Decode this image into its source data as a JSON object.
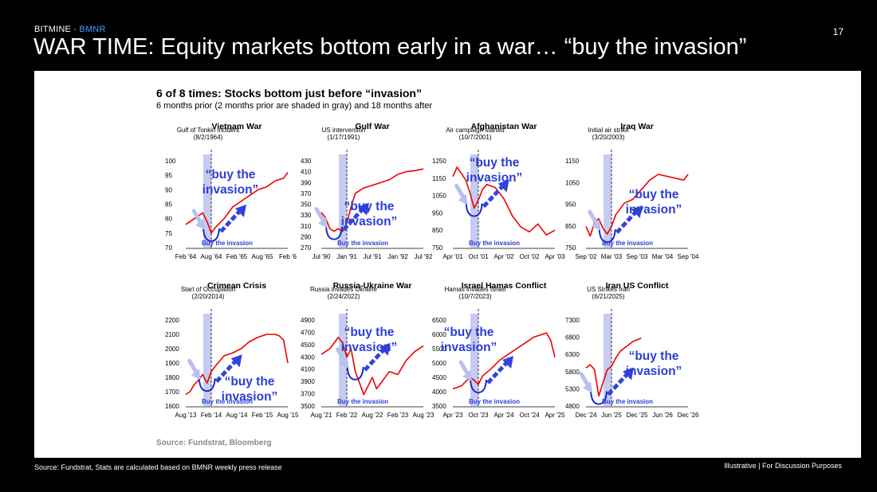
{
  "header": {
    "brand": "BITMINE",
    "brand_sep": " · ",
    "ticker": "BMNR",
    "page_number": "17",
    "title": "WAR TIME: Equity markets bottom early in a war… “buy the invasion”"
  },
  "panel": {
    "title": "6 of 8 times: Stocks bottom just before “invasion”",
    "subtitle": "6 months prior (2 months prior are shaded in gray) and 18 months after",
    "source": "Source: Fundstrat, Bloomberg"
  },
  "footer": {
    "source": "Source: Fundstrat, Stats are calculated based on BMNR weekly press release",
    "note": "Illustrative  |  For Discussion Purposes"
  },
  "colors": {
    "line": "#ee0000",
    "shade": "#c5cbf2",
    "arrow": "#3344dd",
    "arrow_light": "#b8c0ee",
    "text_blue": "#2b3ed4"
  },
  "chart_data": [
    {
      "type": "line",
      "title": "Vietnam War",
      "annotation": "Gulf of Tonkin incident (8/2/1964)",
      "yticks": [
        "100",
        "95",
        "90",
        "85",
        "80",
        "75",
        "70"
      ],
      "ylim": [
        70,
        100
      ],
      "xticks": [
        "Feb '64",
        "Aug '64",
        "Feb '65",
        "Aug '65",
        "Feb '6"
      ],
      "event_x": 6,
      "series": [
        {
          "name": "Index",
          "x": [
            0,
            2,
            4,
            5,
            6,
            7,
            9,
            11,
            13,
            15,
            17,
            19,
            21,
            23,
            24
          ],
          "values": [
            78,
            80,
            82,
            79,
            75,
            77,
            80,
            84,
            86,
            88,
            90,
            91,
            93,
            94,
            96
          ]
        }
      ],
      "callout": "“buy the invasion”",
      "label": "Buy the invasion"
    },
    {
      "type": "line",
      "title": "Gulf War",
      "annotation": "US intervention (1/17/1991)",
      "yticks": [
        "430",
        "410",
        "390",
        "370",
        "350",
        "330",
        "310",
        "290",
        "270"
      ],
      "ylim": [
        270,
        430
      ],
      "xticks": [
        "Jul '90",
        "Jan '91",
        "Jul '91",
        "Jan '92",
        "Jul '92"
      ],
      "event_x": 6,
      "series": [
        {
          "name": "Index",
          "x": [
            0,
            1,
            2,
            3,
            4,
            5,
            6,
            7,
            8,
            10,
            12,
            14,
            16,
            18,
            20,
            22,
            24
          ],
          "values": [
            335,
            325,
            305,
            300,
            305,
            300,
            315,
            345,
            370,
            380,
            385,
            390,
            395,
            405,
            410,
            412,
            415
          ]
        }
      ],
      "callout": "“buy the invasion”",
      "label": "Buy the invasion"
    },
    {
      "type": "line",
      "title": "Afghanistan War",
      "annotation": "Air campaign started (10/7/2001)",
      "yticks": [
        "1250",
        "1150",
        "1050",
        "950",
        "850",
        "750"
      ],
      "ylim": [
        750,
        1300
      ],
      "xticks": [
        "Apr '01",
        "Oct '01",
        "Apr '02",
        "Oct '02",
        "Apr '03"
      ],
      "event_x": 6,
      "series": [
        {
          "name": "Index",
          "x": [
            0,
            1,
            2,
            3,
            4,
            5,
            6,
            7,
            8,
            10,
            12,
            14,
            16,
            18,
            20,
            22,
            24
          ],
          "values": [
            1200,
            1260,
            1220,
            1180,
            1100,
            1000,
            1050,
            1120,
            1150,
            1130,
            1060,
            950,
            880,
            850,
            900,
            830,
            860
          ]
        }
      ],
      "callout": "“buy the invasion”",
      "label": "Buy the invasion"
    },
    {
      "type": "line",
      "title": "Iraq War",
      "annotation": "Initial air strike (3/20/2003)",
      "yticks": [
        "1150",
        "1050",
        "950",
        "850",
        "750"
      ],
      "ylim": [
        750,
        1200
      ],
      "xticks": [
        "Sep '02",
        "Mar '03",
        "Sep '03",
        "Mar '04",
        "Sep '04"
      ],
      "event_x": 6,
      "series": [
        {
          "name": "Index",
          "x": [
            0,
            1,
            2,
            3,
            4,
            5,
            6,
            7,
            9,
            11,
            13,
            15,
            17,
            19,
            21,
            23,
            24
          ],
          "values": [
            860,
            810,
            880,
            900,
            850,
            820,
            860,
            920,
            980,
            1000,
            1050,
            1100,
            1130,
            1120,
            1110,
            1100,
            1130
          ]
        }
      ],
      "callout": "“buy the invasion”",
      "label": "Buy the invasion"
    },
    {
      "type": "line",
      "title": "Crimean Crisis",
      "annotation": "Start of Occupation (2/20/2014)",
      "yticks": [
        "2200",
        "2100",
        "2000",
        "1900",
        "1800",
        "1700",
        "1600"
      ],
      "ylim": [
        1600,
        2200
      ],
      "xticks": [
        "Aug '13",
        "Feb '14",
        "Aug '14",
        "Feb '15",
        "Aug '15"
      ],
      "event_x": 6,
      "series": [
        {
          "name": "Index",
          "x": [
            0,
            1,
            2,
            3,
            4,
            5,
            6,
            7,
            9,
            11,
            13,
            15,
            17,
            19,
            21,
            22,
            23,
            24
          ],
          "values": [
            1680,
            1700,
            1750,
            1780,
            1820,
            1760,
            1840,
            1880,
            1950,
            1970,
            2000,
            2050,
            2080,
            2100,
            2100,
            2090,
            2060,
            1900
          ]
        }
      ],
      "callout": "“buy the invasion”",
      "label": "Buy the invasion"
    },
    {
      "type": "line",
      "title": "Russia-Ukraine War",
      "annotation": "Russia invades Ukraine (2/24/2022)",
      "yticks": [
        "4900",
        "4700",
        "4500",
        "4300",
        "4100",
        "3900",
        "3700",
        "3500"
      ],
      "ylim": [
        3500,
        5000
      ],
      "xticks": [
        "Aug '21",
        "Feb '22",
        "Aug '22",
        "Feb '23",
        "Aug '23"
      ],
      "event_x": 6,
      "series": [
        {
          "name": "Index",
          "x": [
            0,
            2,
            4,
            5,
            6,
            7,
            8,
            10,
            12,
            13,
            14,
            16,
            18,
            20,
            22,
            24
          ],
          "values": [
            4400,
            4500,
            4700,
            4600,
            4350,
            4500,
            4100,
            3700,
            4000,
            3800,
            3900,
            4100,
            4050,
            4300,
            4450,
            4550
          ]
        }
      ],
      "callout": "“buy the invasion”",
      "label": "Buy the invasion"
    },
    {
      "type": "line",
      "title": "Israel Hamas Conflict",
      "annotation": "Hamas invades Israel (10/7/2023)",
      "yticks": [
        "6500",
        "6000",
        "5500",
        "5000",
        "4500",
        "4000",
        "3500"
      ],
      "ylim": [
        3500,
        6500
      ],
      "xticks": [
        "Apr '23",
        "Oct '23",
        "Apr '24",
        "Oct '24",
        "Apr '25"
      ],
      "event_x": 6,
      "series": [
        {
          "name": "Index",
          "x": [
            0,
            2,
            4,
            5,
            6,
            7,
            9,
            11,
            13,
            15,
            17,
            19,
            21,
            22,
            23,
            24
          ],
          "values": [
            4100,
            4200,
            4500,
            4400,
            4250,
            4550,
            4800,
            5100,
            5300,
            5500,
            5700,
            5900,
            6000,
            6050,
            5800,
            5200
          ]
        }
      ],
      "callout": "“buy the invasion”",
      "label": "Buy the invasion"
    },
    {
      "type": "line",
      "title": "Iran US Conflict",
      "annotation": "US Strikes Iran (6/21/2025)",
      "yticks": [
        "7300",
        "6800",
        "6300",
        "5800",
        "5300",
        "4800"
      ],
      "ylim": [
        4800,
        7400
      ],
      "xticks": [
        "Dec '24",
        "Jun '25",
        "Dec '25",
        "Jun '26",
        "Dec '26"
      ],
      "event_x": 6,
      "series": [
        {
          "name": "Index",
          "x": [
            0,
            1,
            2,
            3,
            4,
            5,
            6,
            7,
            8,
            9,
            10,
            11,
            12,
            13
          ],
          "values": [
            5950,
            6050,
            5900,
            5100,
            5500,
            5900,
            6000,
            6250,
            6450,
            6550,
            6650,
            6750,
            6800,
            6850
          ]
        }
      ],
      "callout": "“buy the invasion”",
      "label": "Buy the invasion"
    }
  ]
}
